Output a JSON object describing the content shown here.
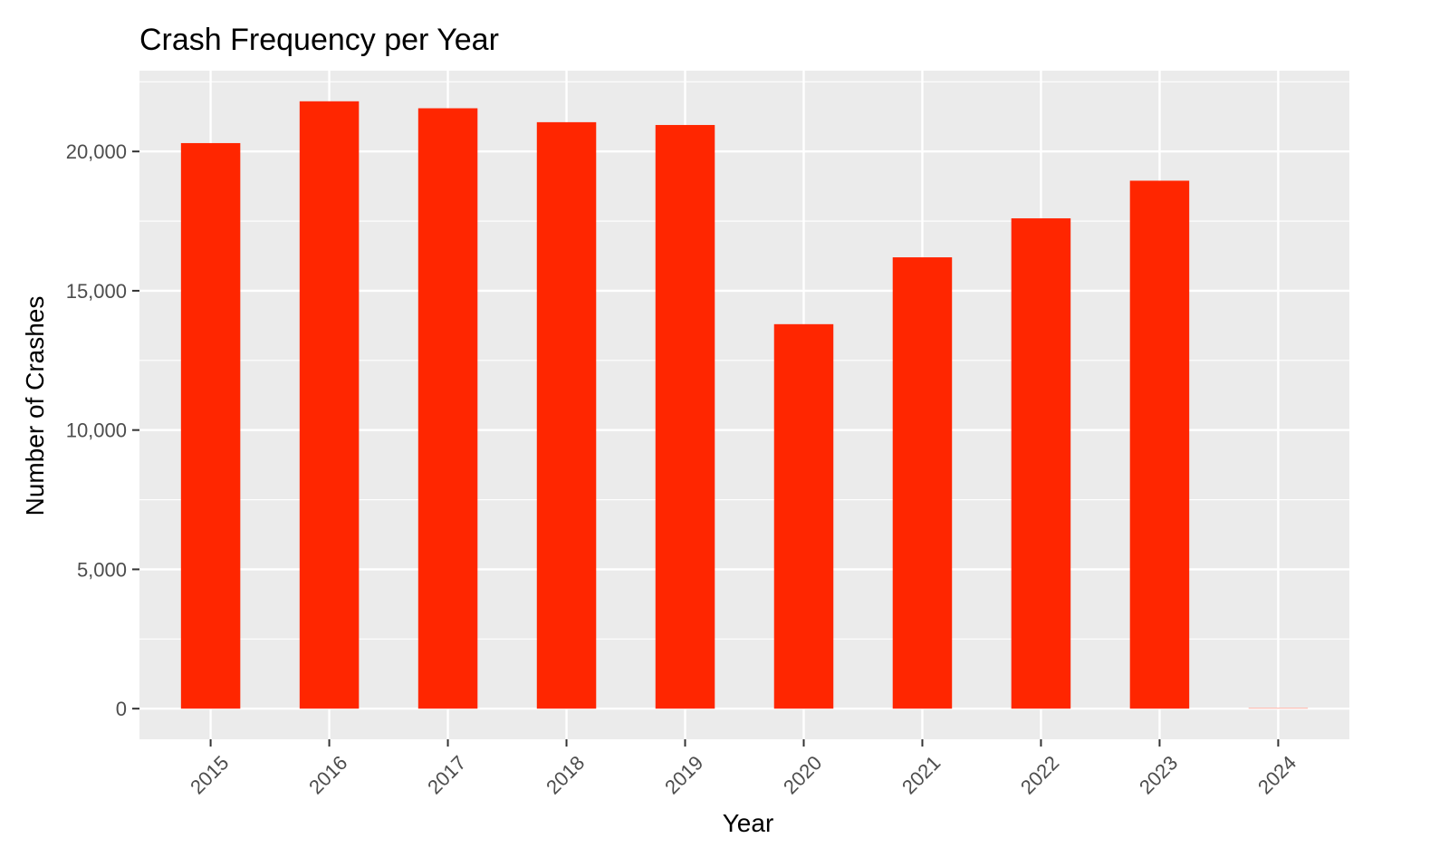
{
  "chart_data": {
    "type": "bar",
    "title": "Crash Frequency per Year",
    "xlabel": "Year",
    "ylabel": "Number of Crashes",
    "categories": [
      "2015",
      "2016",
      "2017",
      "2018",
      "2019",
      "2020",
      "2021",
      "2022",
      "2023",
      "2024"
    ],
    "values": [
      20300,
      21800,
      21550,
      21050,
      20950,
      13800,
      16200,
      17600,
      18950,
      0
    ],
    "ylim": [
      -1100,
      22900
    ],
    "yticks": [
      0,
      5000,
      10000,
      15000,
      20000
    ],
    "ytick_labels": [
      "0",
      "5,000",
      "10,000",
      "15,000",
      "20,000"
    ],
    "grid": true,
    "x_tick_rotation": "45 degrees",
    "colors": {
      "bar": "#ff2600",
      "panel": "#ebebeb",
      "grid": "#ffffff",
      "tick_text": "#4d4d4d"
    }
  }
}
